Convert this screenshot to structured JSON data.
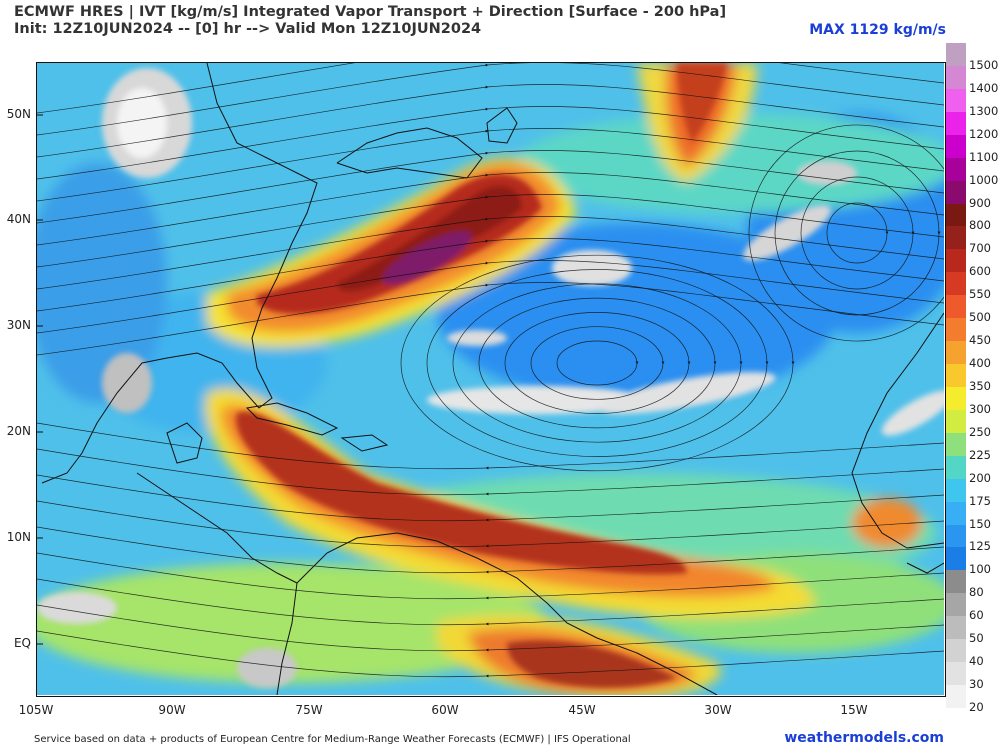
{
  "header": {
    "title_line1": "ECMWF HRES | IVT [kg/m/s] Integrated Vapor Transport + Direction [Surface - 200 hPa]",
    "title_line2": "Init: 12Z10JUN2024 -- [0] hr --> Valid Mon 12Z10JUN2024",
    "max_label": "MAX 1129 kg/m/s"
  },
  "map": {
    "lat_labels": [
      "50N",
      "40N",
      "30N",
      "20N",
      "10N",
      "EQ"
    ],
    "lon_labels": [
      "105W",
      "90W",
      "75W",
      "60W",
      "45W",
      "30W",
      "15W"
    ],
    "lon_range_deg": [
      -105,
      -6
    ],
    "lat_range_deg": [
      -5,
      55
    ],
    "features": [
      {
        "name": "atmospheric-river-western-atlantic",
        "color": "#a81e14"
      },
      {
        "name": "tropical-moisture-band",
        "color": "#b52c14"
      },
      {
        "name": "equatorial-moisture-plume",
        "color": "#b8401c"
      }
    ]
  },
  "colorbar": {
    "levels": [
      "20",
      "30",
      "40",
      "50",
      "60",
      "80",
      "100",
      "125",
      "150",
      "175",
      "200",
      "225",
      "250",
      "300",
      "350",
      "400",
      "450",
      "500",
      "550",
      "600",
      "700",
      "800",
      "900",
      "1000",
      "1100",
      "1200",
      "1300",
      "1400",
      "1500"
    ],
    "colors": [
      "#f2f2f2",
      "#e2e2e2",
      "#d2d2d2",
      "#bcbcbc",
      "#a6a6a6",
      "#8c8c8c",
      "#1a7ee6",
      "#2a96f0",
      "#38aef4",
      "#3ec6ee",
      "#54d6c6",
      "#8ee07c",
      "#d2ec42",
      "#f6ec2e",
      "#f8c82c",
      "#f6a22e",
      "#f47c2e",
      "#ee5a2c",
      "#d63a22",
      "#b8281c",
      "#96201a",
      "#7a1812",
      "#8a0a6e",
      "#a8009a",
      "#cc00cc",
      "#ea22ea",
      "#f060ee",
      "#d488d4",
      "#c0a0c0"
    ]
  },
  "footer": {
    "credit": "Service based on data + products of European Centre for Medium-Range Weather Forecasts (ECMWF) | IFS Operational",
    "site": "weathermodels.com"
  }
}
